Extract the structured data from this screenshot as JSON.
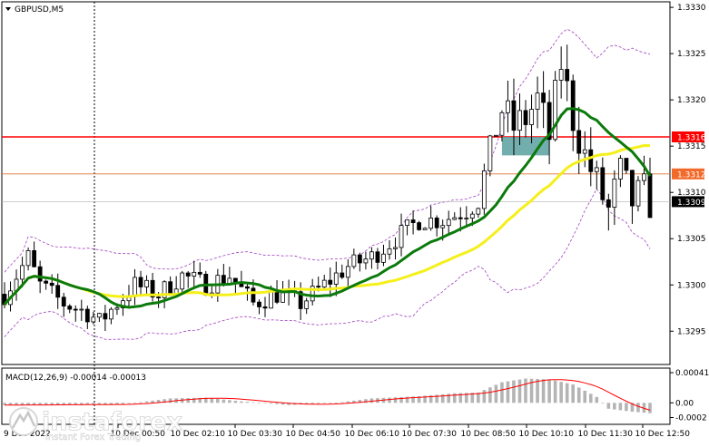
{
  "window": {
    "title": "GBPUSD,M5",
    "macd_label": "MACD(12,26,9) -0.00014 -0.00013"
  },
  "watermark": {
    "brand": "instaforex",
    "tagline": "Instant Forex Trading"
  },
  "colors": {
    "background": "#ffffff",
    "candle": "#000000",
    "ma_fast": "#0b7a0b",
    "ma_slow": "#f5ef1a",
    "bollinger": "#a040c0",
    "resistance_line": "#ff0000",
    "support_line": "#e07030",
    "highlight_box": "#5aa0a0",
    "macd_hist": "#b4b4b4",
    "macd_signal": "#ff0000",
    "tag_red": "#ff0000",
    "tag_orange": "#f26a2a",
    "tag_black": "#000000"
  },
  "chart_data": {
    "type": "candlestick",
    "symbol": "GBPUSD",
    "timeframe": "M5",
    "price_axis": {
      "ylim": [
        1.32915,
        1.33305
      ],
      "ticks": [
        "1.3330",
        "1.3325",
        "1.3320",
        "1.3315",
        "1.3310",
        "1.3305",
        "1.3300",
        "1.3295"
      ],
      "tick_values": [
        1.333,
        1.3325,
        1.332,
        1.3315,
        1.331,
        1.3305,
        1.33,
        1.3295
      ]
    },
    "time_axis": {
      "labels": [
        "9 Dec 2022",
        "10 Dec 00:50",
        "10 Dec 02:10",
        "10 Dec 03:30",
        "10 Dec 04:50",
        "10 Dec 06:10",
        "10 Dec 07:30",
        "10 Dec 08:50",
        "10 Dec 10:10",
        "10 Dec 11:30",
        "10 Dec 12:50"
      ]
    },
    "levels": [
      {
        "name": "resistance",
        "value": 1.3316,
        "label": "1.3316",
        "style": "solid"
      },
      {
        "name": "support",
        "value": 1.3312,
        "label": "1.3312",
        "style": "solid-thin"
      },
      {
        "name": "current-price",
        "value": 1.3309,
        "label": "1.3309",
        "style": "thin-gray"
      }
    ],
    "bar_count": 110,
    "anchors": [
      [
        0,
        1.3299
      ],
      [
        4,
        1.3303
      ],
      [
        6,
        1.33
      ],
      [
        10,
        1.3298
      ],
      [
        14,
        1.3297
      ],
      [
        16,
        1.3296
      ],
      [
        19,
        1.3298
      ],
      [
        22,
        1.33
      ],
      [
        26,
        1.3299
      ],
      [
        30,
        1.3301
      ],
      [
        34,
        1.33
      ],
      [
        38,
        1.3301
      ],
      [
        42,
        1.3298
      ],
      [
        46,
        1.3299
      ],
      [
        50,
        1.3298
      ],
      [
        54,
        1.33
      ],
      [
        58,
        1.3302
      ],
      [
        62,
        1.3303
      ],
      [
        66,
        1.3305
      ],
      [
        70,
        1.3307
      ],
      [
        74,
        1.3307
      ],
      [
        78,
        1.3308
      ],
      [
        80,
        1.3309
      ],
      [
        82,
        1.3315
      ],
      [
        84,
        1.3319
      ],
      [
        86,
        1.3317
      ],
      [
        88,
        1.3318
      ],
      [
        90,
        1.332
      ],
      [
        92,
        1.3316
      ],
      [
        94,
        1.3324
      ],
      [
        96,
        1.3318
      ],
      [
        98,
        1.3314
      ],
      [
        100,
        1.3311
      ],
      [
        102,
        1.3308
      ],
      [
        104,
        1.3312
      ],
      [
        106,
        1.3309
      ],
      [
        108,
        1.331
      ],
      [
        109,
        1.3309
      ]
    ],
    "highlight_box": {
      "x_from": 84,
      "x_to": 92,
      "y_from": 1.3314,
      "y_to": 1.3316
    },
    "macd": {
      "label": "MACD(12,26,9)",
      "main_value": -0.00014,
      "signal_value": -0.00013,
      "ylim": [
        -0.00028,
        0.00046
      ],
      "ticks": [
        "0.00041",
        "0.00",
        "-0.0002"
      ],
      "tick_values": [
        0.00041,
        0.0,
        -0.0002
      ],
      "anchors": [
        [
          0,
          -3e-05
        ],
        [
          20,
          -2e-05
        ],
        [
          28,
          6e-05
        ],
        [
          34,
          7e-05
        ],
        [
          40,
          2e-05
        ],
        [
          48,
          -3e-05
        ],
        [
          56,
          0.0
        ],
        [
          62,
          6e-05
        ],
        [
          70,
          9e-05
        ],
        [
          76,
          0.00013
        ],
        [
          80,
          0.00014
        ],
        [
          84,
          0.00028
        ],
        [
          88,
          0.00033
        ],
        [
          92,
          0.00032
        ],
        [
          96,
          0.00025
        ],
        [
          100,
          8e-05
        ],
        [
          102,
          -8e-05
        ],
        [
          106,
          -0.00012
        ],
        [
          109,
          -0.00014
        ]
      ]
    }
  }
}
